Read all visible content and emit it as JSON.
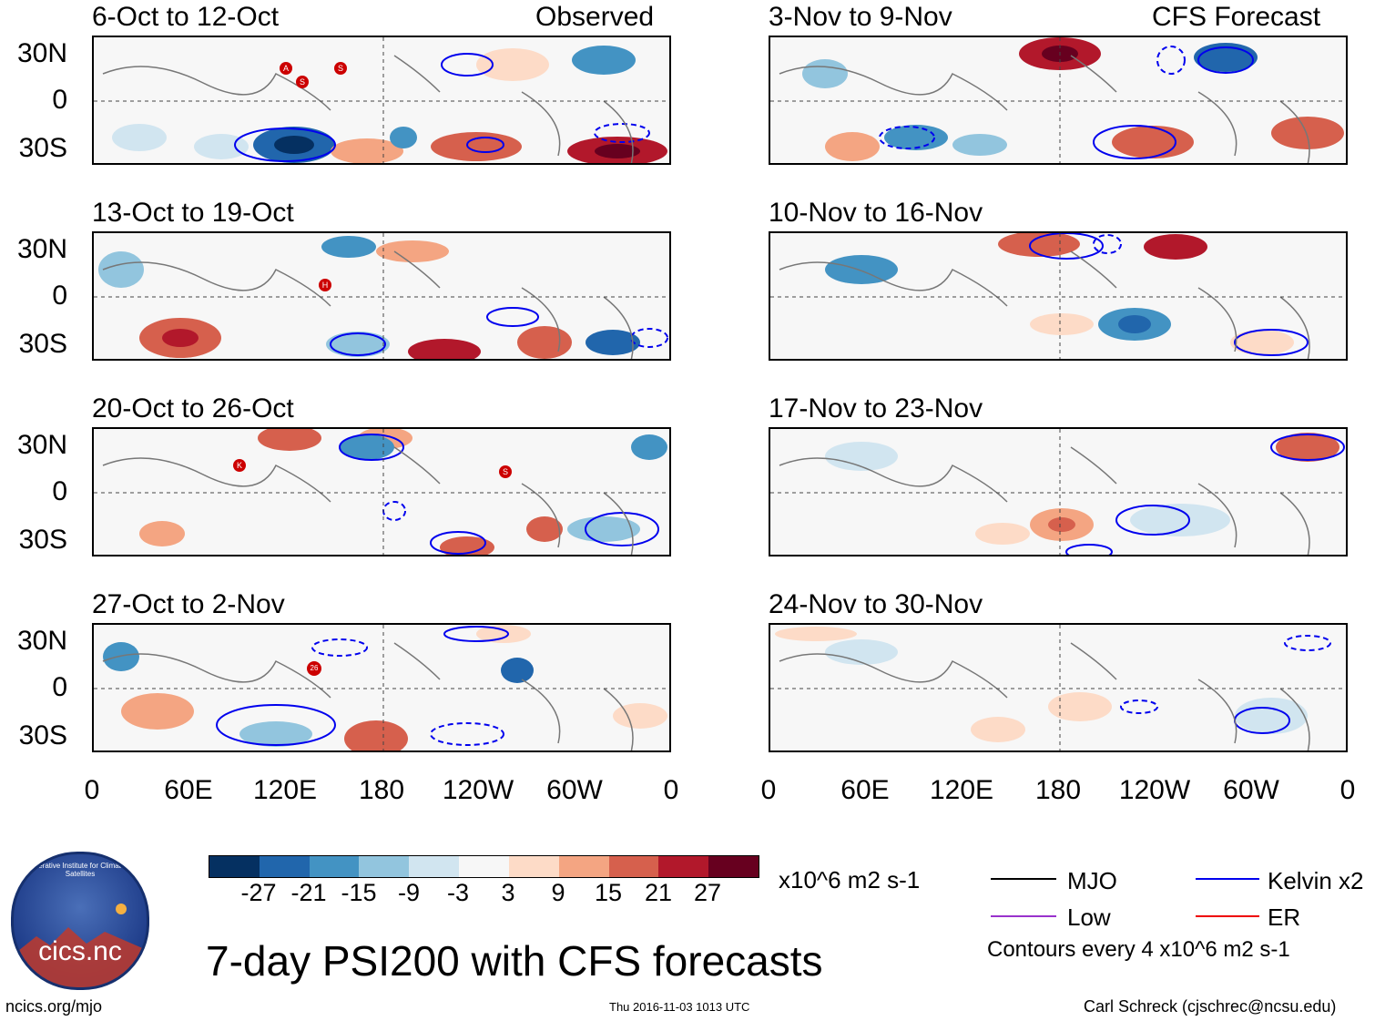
{
  "header": {
    "left_column_label": "Observed",
    "right_column_label": "CFS Forecast"
  },
  "panels": [
    {
      "period": "6-Oct to 12-Oct"
    },
    {
      "period": "13-Oct to 19-Oct"
    },
    {
      "period": "20-Oct to 26-Oct"
    },
    {
      "period": "27-Oct to 2-Nov"
    },
    {
      "period": "3-Nov to 9-Nov"
    },
    {
      "period": "10-Nov to 16-Nov"
    },
    {
      "period": "17-Nov to 23-Nov"
    },
    {
      "period": "24-Nov to 30-Nov"
    }
  ],
  "lat_labels": [
    "30N",
    "0",
    "30S"
  ],
  "lon_labels": [
    "0",
    "60E",
    "120E",
    "180",
    "120W",
    "60W",
    "0"
  ],
  "storm_markers": {
    "panel1": [
      "A",
      "S",
      "S"
    ],
    "panel2": [
      "H"
    ],
    "panel3": [
      "K",
      "S"
    ],
    "panel4": [
      "26"
    ]
  },
  "colorbar": {
    "labels": [
      "-27",
      "-21",
      "-15",
      "-9",
      "-3",
      "3",
      "9",
      "15",
      "21",
      "27"
    ],
    "colors": [
      "#053061",
      "#2166ac",
      "#4393c3",
      "#92c5de",
      "#d1e5f0",
      "#f7f7f7",
      "#fddbc7",
      "#f4a582",
      "#d6604d",
      "#b2182b",
      "#67001f"
    ],
    "units": "x10^6 m2 s-1"
  },
  "legend": {
    "items": [
      {
        "label": "MJO",
        "color": "#000000"
      },
      {
        "label": "Kelvin x2",
        "color": "#0000ee"
      },
      {
        "label": "Low",
        "color": "#9932cc"
      },
      {
        "label": "ER",
        "color": "#ee0000"
      }
    ],
    "contour_note": "Contours every 4 x10^6 m2 s-1"
  },
  "main_title": "7-day PSI200 with CFS forecasts",
  "logo_text": "cics.nc",
  "logo_ring_text": "Cooperative Institute for Climate and Satellites",
  "footer": {
    "left": "ncics.org/mjo",
    "center": "Thu 2016-11-03 1013 UTC",
    "right": "Carl Schreck (cjschrec@ncsu.edu)"
  }
}
